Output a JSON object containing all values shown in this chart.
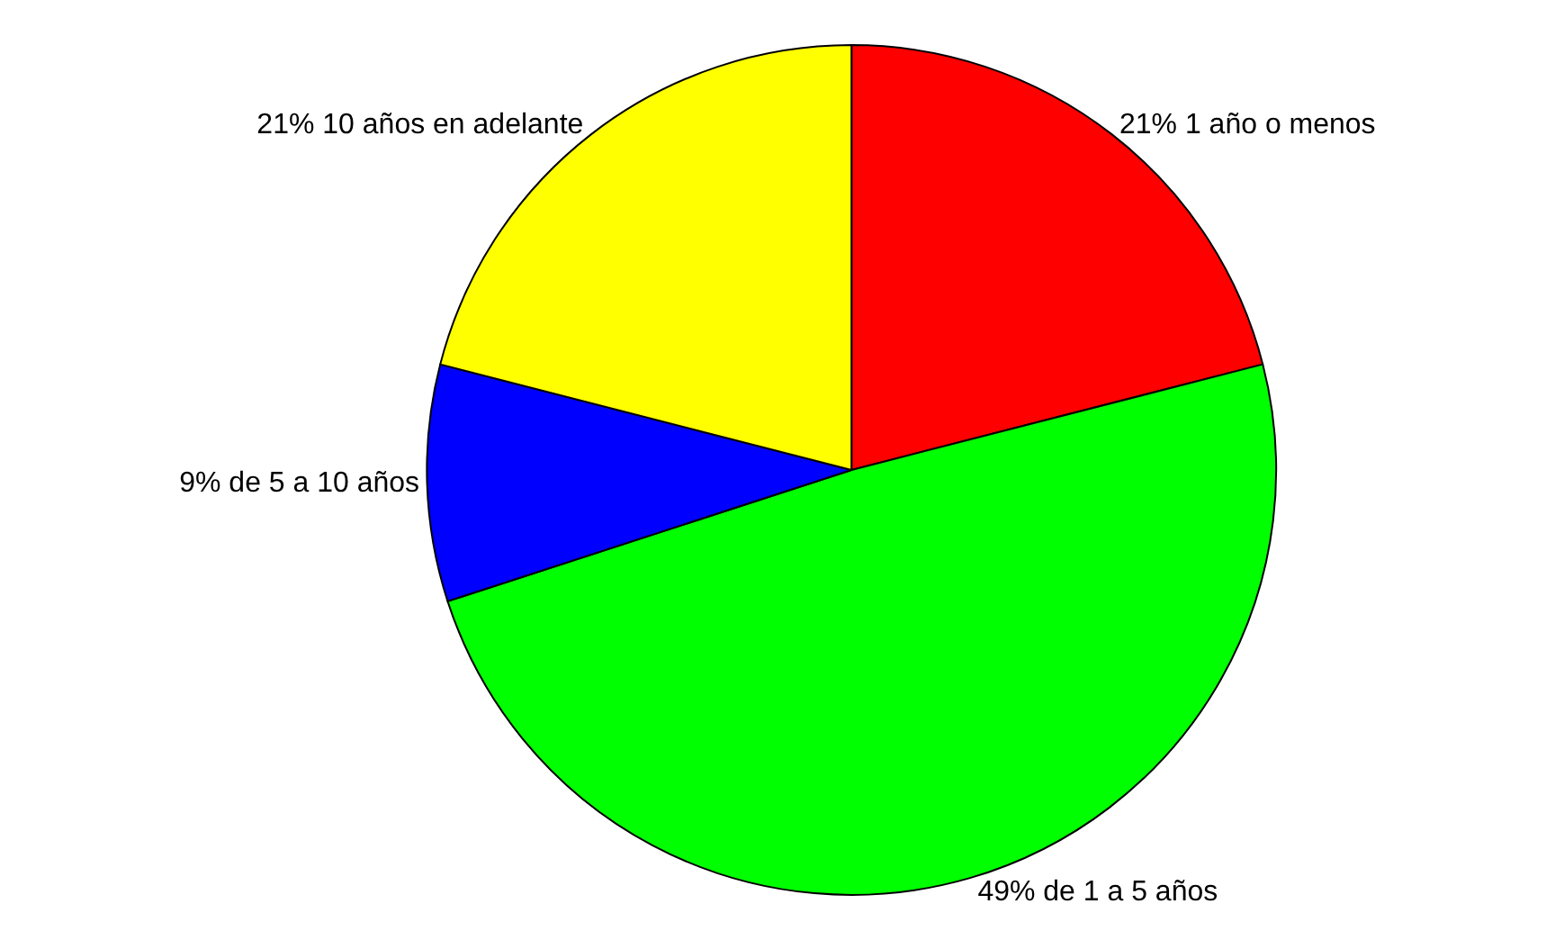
{
  "chart_data": {
    "type": "pie",
    "categories": [
      "21% 1 año o menos",
      "49% de 1 a 5 años",
      "9% de 5 a 10 años",
      "21% 10 años en adelante"
    ],
    "values": [
      21,
      49,
      9,
      21
    ],
    "colors": [
      "#ff0000",
      "#00ff00",
      "#0000ff",
      "#ffff00"
    ],
    "legend": false
  }
}
